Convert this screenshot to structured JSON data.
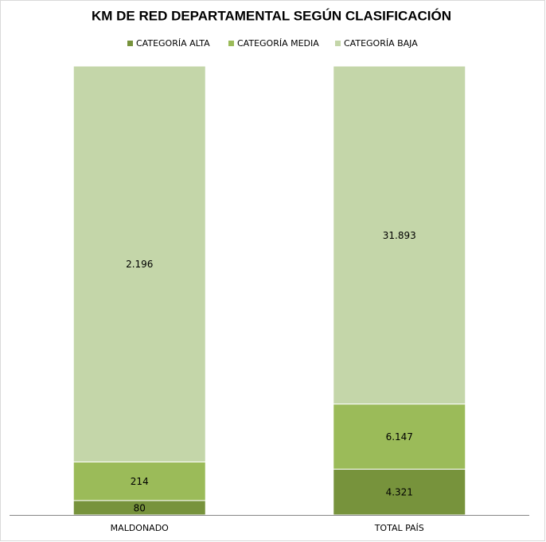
{
  "chart_data": {
    "type": "bar",
    "stacking": "percent",
    "title": "KM DE RED DEPARTAMENTAL SEGÚN CLASIFICACIÓN",
    "categories": [
      "MALDONADO",
      "TOTAL PAÍS"
    ],
    "legend": "top",
    "series": [
      {
        "name": "CATEGORÍA ALTA",
        "color": "#77933c",
        "values": [
          80,
          4321
        ],
        "value_labels": [
          "80",
          "4.321"
        ]
      },
      {
        "name": "CATEGORÍA MEDIA",
        "color": "#9bbb59",
        "values": [
          214,
          6147
        ],
        "value_labels": [
          "214",
          "6.147"
        ]
      },
      {
        "name": "CATEGORÍA BAJA",
        "color": "#c4d6a9",
        "values": [
          2196,
          31893
        ],
        "value_labels": [
          "2.196",
          "31.893"
        ]
      }
    ]
  }
}
